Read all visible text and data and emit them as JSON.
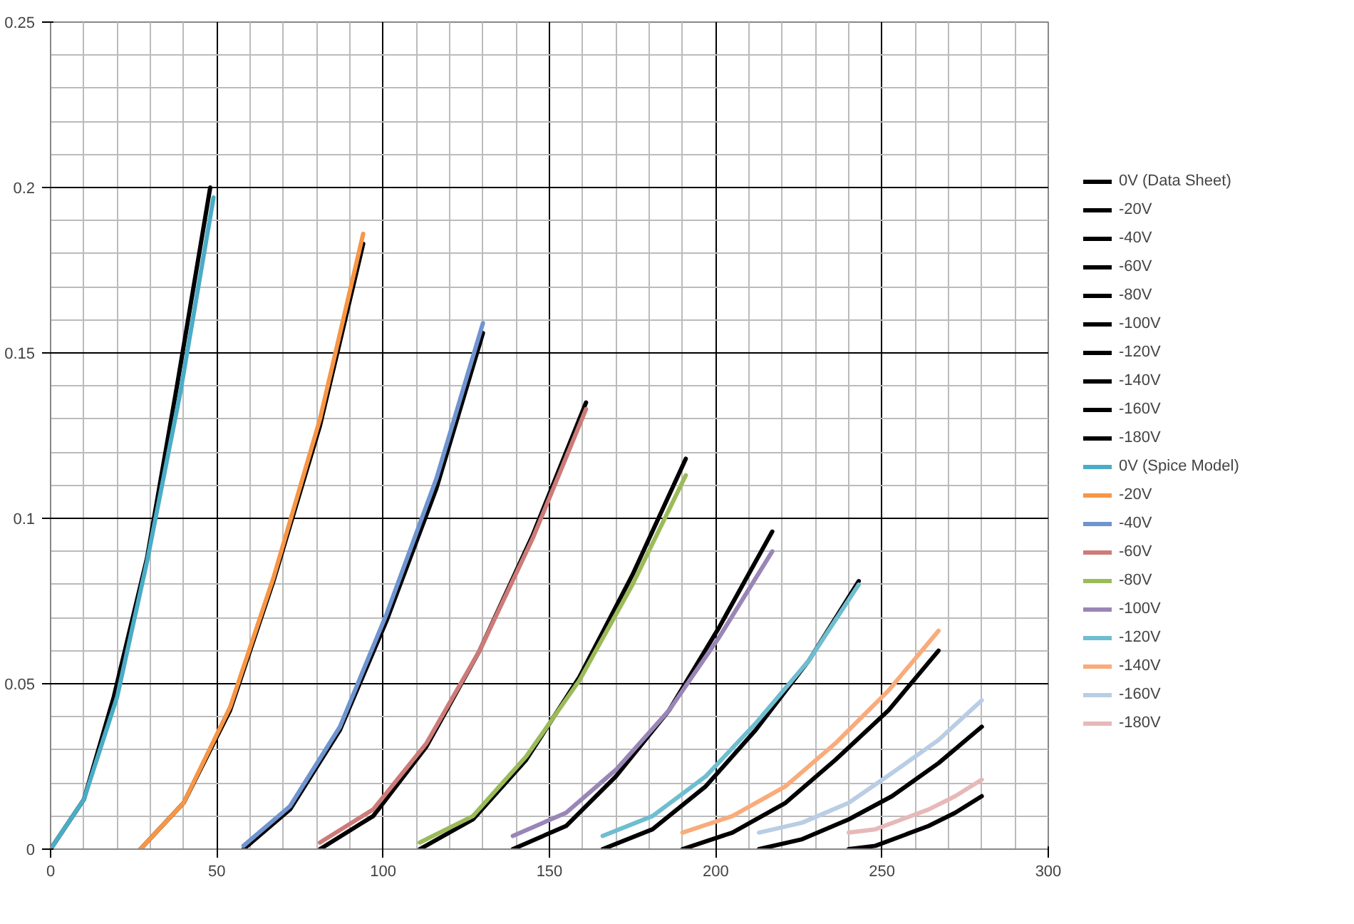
{
  "chart_data": {
    "type": "line",
    "xlim": [
      0,
      300
    ],
    "ylim": [
      0,
      0.25
    ],
    "xticks": [
      0,
      50,
      100,
      150,
      200,
      250,
      300
    ],
    "yticks": [
      {
        "value": 0,
        "label": "0"
      },
      0.05,
      {
        "value": 0.1,
        "label": "0.1"
      },
      0.15,
      {
        "value": 0.2,
        "label": "0.2"
      },
      0.25
    ],
    "grid": true,
    "legend": "right",
    "line_style": "solid",
    "series": [
      {
        "name": "0V (Data Sheet)",
        "color": "#000000",
        "x": [
          0,
          10,
          19,
          29,
          38,
          48
        ],
        "values": [
          0,
          0.015,
          0.046,
          0.088,
          0.14,
          0.2
        ]
      },
      {
        "name": "-20V",
        "color": "#000000",
        "x": [
          27,
          40,
          54,
          67,
          81,
          94
        ],
        "values": [
          0,
          0.014,
          0.042,
          0.081,
          0.128,
          0.183
        ]
      },
      {
        "name": "-40V",
        "color": "#000000",
        "x": [
          58,
          72,
          87,
          101,
          116,
          130
        ],
        "values": [
          0,
          0.012,
          0.036,
          0.069,
          0.109,
          0.156
        ]
      },
      {
        "name": "-60V",
        "color": "#000000",
        "x": [
          81,
          97,
          113,
          129,
          145,
          161
        ],
        "values": [
          0,
          0.01,
          0.031,
          0.06,
          0.095,
          0.135
        ]
      },
      {
        "name": "-80V",
        "color": "#000000",
        "x": [
          111,
          127,
          143,
          159,
          175,
          191
        ],
        "values": [
          0,
          0.009,
          0.027,
          0.052,
          0.083,
          0.118
        ]
      },
      {
        "name": "-100V",
        "color": "#000000",
        "x": [
          139,
          155,
          170,
          186,
          201,
          217
        ],
        "values": [
          0,
          0.007,
          0.022,
          0.042,
          0.067,
          0.096
        ]
      },
      {
        "name": "-120V",
        "color": "#000000",
        "x": [
          166,
          181,
          197,
          212,
          228,
          243
        ],
        "values": [
          0,
          0.006,
          0.019,
          0.036,
          0.057,
          0.081
        ]
      },
      {
        "name": "-140V",
        "color": "#000000",
        "x": [
          190,
          205,
          221,
          236,
          252,
          267
        ],
        "values": [
          0,
          0.005,
          0.014,
          0.027,
          0.042,
          0.06
        ]
      },
      {
        "name": "-160V",
        "color": "#000000",
        "x": [
          213,
          226,
          240,
          253,
          267,
          280
        ],
        "values": [
          0,
          0.003,
          0.009,
          0.016,
          0.026,
          0.037
        ]
      },
      {
        "name": "-180V",
        "color": "#000000",
        "x": [
          240,
          248,
          256,
          264,
          272,
          280
        ],
        "values": [
          0,
          0.001,
          0.004,
          0.007,
          0.011,
          0.016
        ]
      },
      {
        "name": "0V (Spice Model)",
        "color": "#4bacc6",
        "x": [
          0,
          10,
          20,
          29,
          39,
          49
        ],
        "values": [
          0,
          0.015,
          0.046,
          0.087,
          0.138,
          0.197
        ]
      },
      {
        "name": "-20V",
        "color": "#f79646",
        "x": [
          27,
          40,
          54,
          67,
          81,
          94
        ],
        "values": [
          0,
          0.014,
          0.043,
          0.082,
          0.13,
          0.186
        ]
      },
      {
        "name": "-40V",
        "color": "#6f94cf",
        "x": [
          58,
          72,
          87,
          101,
          116,
          130
        ],
        "values": [
          0.001,
          0.013,
          0.037,
          0.071,
          0.112,
          0.159
        ]
      },
      {
        "name": "-60V",
        "color": "#cd7b79",
        "x": [
          81,
          97,
          113,
          129,
          145,
          161
        ],
        "values": [
          0.002,
          0.012,
          0.032,
          0.06,
          0.094,
          0.133
        ]
      },
      {
        "name": "-80V",
        "color": "#9bbb59",
        "x": [
          111,
          127,
          143,
          159,
          175,
          191
        ],
        "values": [
          0.002,
          0.01,
          0.028,
          0.051,
          0.08,
          0.113
        ]
      },
      {
        "name": "-100V",
        "color": "#9a85b7",
        "x": [
          139,
          155,
          170,
          186,
          201,
          217
        ],
        "values": [
          0.004,
          0.011,
          0.024,
          0.042,
          0.064,
          0.09
        ]
      },
      {
        "name": "-120V",
        "color": "#6fbdd1",
        "x": [
          166,
          181,
          197,
          212,
          228,
          243
        ],
        "values": [
          0.004,
          0.01,
          0.022,
          0.038,
          0.057,
          0.08
        ]
      },
      {
        "name": "-140V",
        "color": "#f9ab7a",
        "x": [
          190,
          205,
          221,
          236,
          252,
          267
        ],
        "values": [
          0.005,
          0.01,
          0.019,
          0.032,
          0.048,
          0.066
        ]
      },
      {
        "name": "-160V",
        "color": "#b9cde5",
        "x": [
          213,
          226,
          240,
          253,
          267,
          280
        ],
        "values": [
          0.005,
          0.008,
          0.014,
          0.023,
          0.033,
          0.045
        ]
      },
      {
        "name": "-180V",
        "color": "#e6b9b8",
        "x": [
          240,
          248,
          256,
          264,
          272,
          280
        ],
        "values": [
          0.005,
          0.006,
          0.009,
          0.012,
          0.016,
          0.021
        ]
      }
    ]
  }
}
